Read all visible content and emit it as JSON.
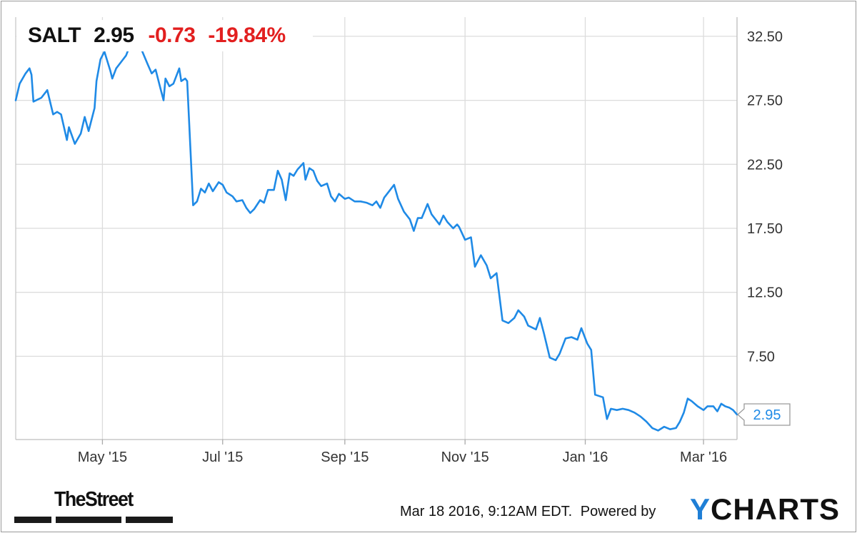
{
  "header": {
    "symbol": "SALT",
    "price": "2.95",
    "change": "-0.73",
    "change_pct": "-19.84%"
  },
  "footer": {
    "timestamp": "Mar 18 2016, 9:12AM EDT.",
    "powered_by": "Powered by",
    "brand_y": "Y",
    "brand_rest": "CHARTS",
    "publisher": "TheStreet"
  },
  "colors": {
    "line": "#1f8ae6",
    "grid": "#dcdcdc",
    "negative": "#e21f1f",
    "brand_accent": "#1f7fd6"
  },
  "chart_data": {
    "type": "line",
    "title": "",
    "xlabel": "",
    "ylabel": "",
    "ylim": [
      1.0,
      34.0
    ],
    "y_ticks": [
      "7.50",
      "12.50",
      "17.50",
      "22.50",
      "27.50",
      "32.50"
    ],
    "x_ticks": [
      {
        "label": "May '15",
        "date": "2015-05-01"
      },
      {
        "label": "Jul '15",
        "date": "2015-07-01"
      },
      {
        "label": "Sep '15",
        "date": "2015-09-01"
      },
      {
        "label": "Nov '15",
        "date": "2015-11-01"
      },
      {
        "label": "Jan '16",
        "date": "2016-01-01"
      },
      {
        "label": "Mar '16",
        "date": "2016-03-01"
      }
    ],
    "x_range": [
      "2015-03-18",
      "2016-03-18"
    ],
    "last_value_label": "2.95",
    "grid": true,
    "series": [
      {
        "name": "",
        "points": [
          [
            "2015-03-18",
            27.5
          ],
          [
            "2015-03-20",
            28.8
          ],
          [
            "2015-03-23",
            29.6
          ],
          [
            "2015-03-25",
            30.0
          ],
          [
            "2015-03-26",
            29.5
          ],
          [
            "2015-03-27",
            27.4
          ],
          [
            "2015-03-31",
            27.7
          ],
          [
            "2015-04-03",
            28.3
          ],
          [
            "2015-04-06",
            26.4
          ],
          [
            "2015-04-08",
            26.6
          ],
          [
            "2015-04-10",
            26.4
          ],
          [
            "2015-04-13",
            24.4
          ],
          [
            "2015-04-14",
            25.4
          ],
          [
            "2015-04-17",
            24.1
          ],
          [
            "2015-04-20",
            24.9
          ],
          [
            "2015-04-22",
            26.2
          ],
          [
            "2015-04-24",
            25.1
          ],
          [
            "2015-04-27",
            26.9
          ],
          [
            "2015-04-28",
            29.0
          ],
          [
            "2015-04-30",
            30.7
          ],
          [
            "2015-05-02",
            31.3
          ],
          [
            "2015-05-05",
            29.8
          ],
          [
            "2015-05-06",
            29.2
          ],
          [
            "2015-05-08",
            30.0
          ],
          [
            "2015-05-11",
            30.6
          ],
          [
            "2015-05-13",
            31.0
          ],
          [
            "2015-05-15",
            31.8
          ],
          [
            "2015-05-18",
            31.5
          ],
          [
            "2015-05-19",
            32.0
          ],
          [
            "2015-05-21",
            31.4
          ],
          [
            "2015-05-24",
            30.3
          ],
          [
            "2015-05-26",
            29.6
          ],
          [
            "2015-05-28",
            29.9
          ],
          [
            "2015-05-30",
            28.7
          ],
          [
            "2015-06-01",
            27.5
          ],
          [
            "2015-06-02",
            29.2
          ],
          [
            "2015-06-04",
            28.6
          ],
          [
            "2015-06-06",
            28.8
          ],
          [
            "2015-06-09",
            30.0
          ],
          [
            "2015-06-10",
            29.0
          ],
          [
            "2015-06-12",
            29.2
          ],
          [
            "2015-06-13",
            29.0
          ],
          [
            "2015-06-16",
            19.3
          ],
          [
            "2015-06-18",
            19.6
          ],
          [
            "2015-06-20",
            20.6
          ],
          [
            "2015-06-22",
            20.3
          ],
          [
            "2015-06-24",
            21.0
          ],
          [
            "2015-06-26",
            20.4
          ],
          [
            "2015-06-29",
            21.1
          ],
          [
            "2015-07-01",
            20.9
          ],
          [
            "2015-07-03",
            20.3
          ],
          [
            "2015-07-06",
            20.0
          ],
          [
            "2015-07-08",
            19.6
          ],
          [
            "2015-07-11",
            19.7
          ],
          [
            "2015-07-13",
            19.1
          ],
          [
            "2015-07-15",
            18.7
          ],
          [
            "2015-07-17",
            19.0
          ],
          [
            "2015-07-20",
            19.7
          ],
          [
            "2015-07-22",
            19.5
          ],
          [
            "2015-07-24",
            20.5
          ],
          [
            "2015-07-27",
            20.5
          ],
          [
            "2015-07-29",
            22.0
          ],
          [
            "2015-07-31",
            21.3
          ],
          [
            "2015-08-02",
            19.7
          ],
          [
            "2015-08-04",
            21.8
          ],
          [
            "2015-08-06",
            21.6
          ],
          [
            "2015-08-08",
            22.1
          ],
          [
            "2015-08-11",
            22.6
          ],
          [
            "2015-08-12",
            21.3
          ],
          [
            "2015-08-14",
            22.2
          ],
          [
            "2015-08-16",
            22.0
          ],
          [
            "2015-08-18",
            21.2
          ],
          [
            "2015-08-20",
            20.8
          ],
          [
            "2015-08-23",
            21.0
          ],
          [
            "2015-08-25",
            20.0
          ],
          [
            "2015-08-27",
            19.6
          ],
          [
            "2015-08-29",
            20.2
          ],
          [
            "2015-09-01",
            19.8
          ],
          [
            "2015-09-03",
            19.9
          ],
          [
            "2015-09-06",
            19.6
          ],
          [
            "2015-09-09",
            19.6
          ],
          [
            "2015-09-12",
            19.5
          ],
          [
            "2015-09-15",
            19.3
          ],
          [
            "2015-09-17",
            19.6
          ],
          [
            "2015-09-19",
            19.1
          ],
          [
            "2015-09-21",
            19.9
          ],
          [
            "2015-09-24",
            20.5
          ],
          [
            "2015-09-26",
            20.9
          ],
          [
            "2015-09-28",
            19.8
          ],
          [
            "2015-10-01",
            18.8
          ],
          [
            "2015-10-04",
            18.2
          ],
          [
            "2015-10-06",
            17.3
          ],
          [
            "2015-10-08",
            18.3
          ],
          [
            "2015-10-10",
            18.3
          ],
          [
            "2015-10-13",
            19.4
          ],
          [
            "2015-10-15",
            18.6
          ],
          [
            "2015-10-17",
            18.2
          ],
          [
            "2015-10-19",
            17.8
          ],
          [
            "2015-10-21",
            18.5
          ],
          [
            "2015-10-23",
            18.0
          ],
          [
            "2015-10-26",
            17.5
          ],
          [
            "2015-10-28",
            17.8
          ],
          [
            "2015-10-29",
            17.6
          ],
          [
            "2015-11-01",
            16.6
          ],
          [
            "2015-11-04",
            16.8
          ],
          [
            "2015-11-06",
            14.5
          ],
          [
            "2015-11-09",
            15.4
          ],
          [
            "2015-11-12",
            14.6
          ],
          [
            "2015-11-14",
            13.6
          ],
          [
            "2015-11-17",
            14.0
          ],
          [
            "2015-11-20",
            10.3
          ],
          [
            "2015-11-23",
            10.1
          ],
          [
            "2015-11-26",
            10.5
          ],
          [
            "2015-11-28",
            11.1
          ],
          [
            "2015-12-01",
            10.6
          ],
          [
            "2015-12-03",
            9.9
          ],
          [
            "2015-12-07",
            9.6
          ],
          [
            "2015-12-09",
            10.5
          ],
          [
            "2015-12-11",
            9.3
          ],
          [
            "2015-12-14",
            7.4
          ],
          [
            "2015-12-17",
            7.2
          ],
          [
            "2015-12-19",
            7.7
          ],
          [
            "2015-12-22",
            8.9
          ],
          [
            "2015-12-25",
            9.0
          ],
          [
            "2015-12-28",
            8.8
          ],
          [
            "2015-12-30",
            9.7
          ],
          [
            "2016-01-02",
            8.5
          ],
          [
            "2016-01-04",
            8.0
          ],
          [
            "2016-01-06",
            4.5
          ],
          [
            "2016-01-10",
            4.3
          ],
          [
            "2016-01-12",
            2.6
          ],
          [
            "2016-01-14",
            3.4
          ],
          [
            "2016-01-17",
            3.3
          ],
          [
            "2016-01-20",
            3.4
          ],
          [
            "2016-01-23",
            3.3
          ],
          [
            "2016-01-26",
            3.1
          ],
          [
            "2016-01-29",
            2.8
          ],
          [
            "2016-02-01",
            2.4
          ],
          [
            "2016-02-04",
            1.9
          ],
          [
            "2016-02-07",
            1.7
          ],
          [
            "2016-02-10",
            2.0
          ],
          [
            "2016-02-13",
            1.8
          ],
          [
            "2016-02-16",
            1.9
          ],
          [
            "2016-02-18",
            2.4
          ],
          [
            "2016-02-20",
            3.1
          ],
          [
            "2016-02-22",
            4.2
          ],
          [
            "2016-02-24",
            4.0
          ],
          [
            "2016-02-27",
            3.6
          ],
          [
            "2016-03-01",
            3.3
          ],
          [
            "2016-03-03",
            3.6
          ],
          [
            "2016-03-06",
            3.6
          ],
          [
            "2016-03-08",
            3.2
          ],
          [
            "2016-03-10",
            3.8
          ],
          [
            "2016-03-12",
            3.6
          ],
          [
            "2016-03-14",
            3.5
          ],
          [
            "2016-03-16",
            3.3
          ],
          [
            "2016-03-18",
            2.95
          ]
        ]
      }
    ]
  }
}
